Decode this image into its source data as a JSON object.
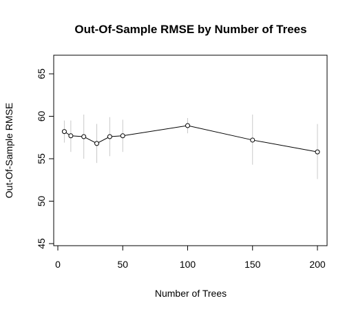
{
  "chart_data": {
    "type": "line",
    "title": "Out-Of-Sample RMSE by Number of Trees",
    "xlabel": "Number of Trees",
    "ylabel": "Out-Of-Sample RMSE",
    "xlim": [
      0,
      200
    ],
    "ylim": [
      45,
      65
    ],
    "xticks": [
      "0",
      "50",
      "100",
      "150",
      "200"
    ],
    "yticks": [
      "45",
      "50",
      "55",
      "60",
      "65"
    ],
    "grid": false,
    "legend": "none",
    "series": [
      {
        "x": [
          5,
          10,
          20,
          30,
          40,
          50,
          100,
          150,
          200
        ],
        "y": [
          58.2,
          57.7,
          57.6,
          56.8,
          57.6,
          57.7,
          58.9,
          57.2,
          55.8
        ],
        "error_low": [
          56.9,
          55.8,
          55.0,
          54.5,
          55.3,
          55.8,
          58.0,
          54.3,
          52.6
        ],
        "error_high": [
          59.5,
          59.5,
          60.2,
          59.1,
          59.9,
          59.6,
          59.8,
          60.2,
          59.1
        ],
        "line_color": "#000000",
        "error_color": "#c8c8c8"
      }
    ]
  }
}
